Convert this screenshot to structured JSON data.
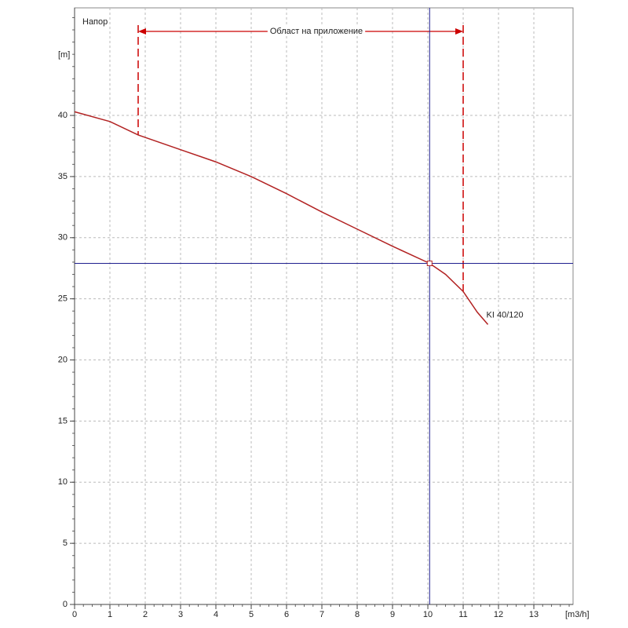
{
  "chart_data": {
    "type": "line",
    "title": "Напор",
    "y_label": "[m]",
    "x_label": "[m3/h]",
    "x": [
      0,
      1,
      1.8,
      3,
      4,
      5,
      6,
      7,
      8,
      9,
      10.05,
      10.5,
      11,
      11.4,
      11.7
    ],
    "series": [
      {
        "name": "KI 40/120",
        "color": "#b22222",
        "values": [
          40.3,
          39.5,
          38.4,
          37.2,
          36.2,
          35.0,
          33.6,
          32.1,
          30.7,
          29.3,
          27.9,
          27.0,
          25.6,
          23.9,
          22.9
        ]
      }
    ],
    "xlim": [
      0,
      14.11
    ],
    "ylim": [
      0,
      48.8
    ],
    "xticks": [
      0,
      1,
      2,
      3,
      4,
      5,
      6,
      7,
      8,
      9,
      10,
      11,
      12,
      13
    ],
    "yticks": [
      0,
      5,
      10,
      15,
      20,
      25,
      30,
      35,
      40
    ],
    "grid": true,
    "operating_point": {
      "x": 10.05,
      "y": 27.9,
      "color": "#1f1f8f"
    },
    "application_range": {
      "label": "Област на приложение",
      "from": 1.8,
      "to": 11,
      "color": "#cc0000"
    }
  }
}
